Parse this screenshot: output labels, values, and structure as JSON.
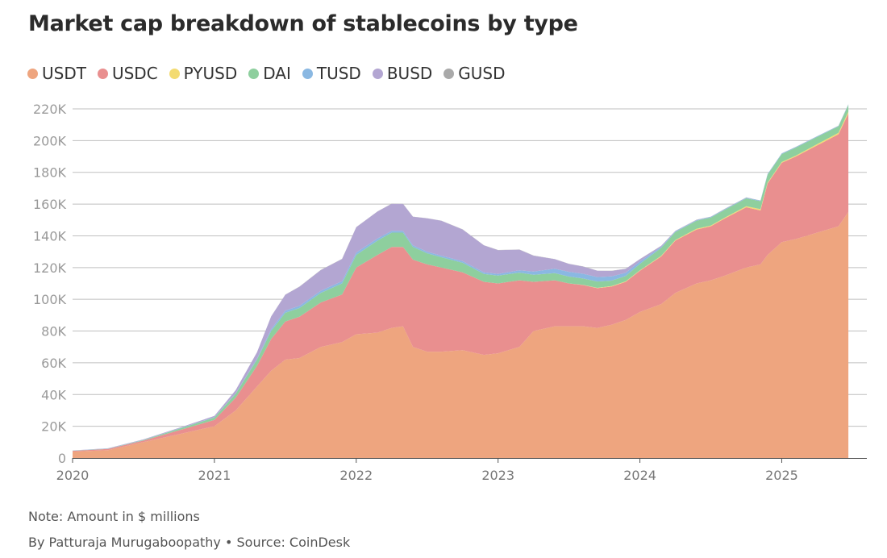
{
  "title": "Market cap breakdown of stablecoins by type",
  "legend": [
    {
      "label": "USDT",
      "color": "#eea57f"
    },
    {
      "label": "USDC",
      "color": "#e98f8f"
    },
    {
      "label": "PYUSD",
      "color": "#f3db72"
    },
    {
      "label": "DAI",
      "color": "#8ecf9e"
    },
    {
      "label": "TUSD",
      "color": "#8ab8e2"
    },
    {
      "label": "BUSD",
      "color": "#b3a6d2"
    },
    {
      "label": "GUSD",
      "color": "#a9a9a9"
    }
  ],
  "note": "Note: Amount in $ millions",
  "byline": "By Patturaja Murugaboopathy",
  "source": "• Source: CoinDesk",
  "chart_data": {
    "type": "area",
    "stacked": true,
    "title": "Market cap breakdown of stablecoins by type",
    "xlabel": "",
    "ylabel": "",
    "ylim": [
      0,
      220000
    ],
    "yticks": [
      0,
      20000,
      40000,
      60000,
      80000,
      100000,
      120000,
      140000,
      160000,
      180000,
      200000,
      220000
    ],
    "ytick_labels": [
      "0",
      "20K",
      "40K",
      "60K",
      "80K",
      "100K",
      "120K",
      "140K",
      "160K",
      "180K",
      "200K",
      "220K"
    ],
    "xlim": [
      2020,
      2025.6
    ],
    "xticks": [
      2020,
      2021,
      2022,
      2023,
      2024,
      2025
    ],
    "xtick_labels": [
      "2020",
      "2021",
      "2022",
      "2023",
      "2024",
      "2025"
    ],
    "grid": "horizontal",
    "legend_position": "top-left",
    "x": [
      2020.0,
      2020.25,
      2020.5,
      2020.75,
      2021.0,
      2021.15,
      2021.3,
      2021.4,
      2021.5,
      2021.6,
      2021.75,
      2021.9,
      2022.0,
      2022.15,
      2022.25,
      2022.33,
      2022.4,
      2022.5,
      2022.6,
      2022.75,
      2022.9,
      2023.0,
      2023.15,
      2023.25,
      2023.4,
      2023.5,
      2023.6,
      2023.7,
      2023.8,
      2023.9,
      2024.0,
      2024.15,
      2024.25,
      2024.4,
      2024.5,
      2024.6,
      2024.75,
      2024.85,
      2024.9,
      2025.0,
      2025.1,
      2025.25,
      2025.4,
      2025.47
    ],
    "series": [
      {
        "name": "USDT",
        "values": [
          4000,
          5000,
          10000,
          15000,
          20000,
          30000,
          45000,
          55000,
          62000,
          63000,
          70000,
          73000,
          78000,
          79000,
          82000,
          83000,
          70000,
          67000,
          67000,
          68000,
          65000,
          66000,
          70000,
          80000,
          83000,
          83000,
          83000,
          82000,
          84000,
          87000,
          92000,
          97000,
          104000,
          110000,
          112000,
          115000,
          120000,
          122000,
          128000,
          136000,
          138000,
          142000,
          146000,
          155000
        ]
      },
      {
        "name": "USDC",
        "values": [
          500,
          700,
          1000,
          2500,
          4000,
          8000,
          13000,
          20000,
          24000,
          26000,
          28000,
          30000,
          42000,
          49000,
          51000,
          50000,
          55000,
          55000,
          53000,
          49000,
          46000,
          44000,
          42000,
          31000,
          29000,
          27000,
          26000,
          25000,
          24000,
          24000,
          26000,
          30000,
          33000,
          34000,
          34000,
          36000,
          38000,
          34000,
          45000,
          50000,
          52000,
          55000,
          58000,
          62000
        ]
      },
      {
        "name": "PYUSD",
        "values": [
          0,
          0,
          0,
          0,
          0,
          0,
          0,
          0,
          0,
          0,
          0,
          0,
          0,
          0,
          0,
          0,
          0,
          0,
          0,
          0,
          0,
          0,
          0,
          0,
          0,
          0,
          100,
          200,
          300,
          300,
          300,
          400,
          400,
          500,
          500,
          500,
          600,
          800,
          500,
          500,
          600,
          800,
          900,
          1200
        ]
      },
      {
        "name": "DAI",
        "values": [
          100,
          150,
          300,
          900,
          1500,
          2500,
          4000,
          5000,
          5500,
          5500,
          6000,
          7000,
          8000,
          9000,
          9000,
          9000,
          8000,
          7000,
          6500,
          6000,
          5000,
          5000,
          4800,
          4500,
          4500,
          4300,
          4000,
          4000,
          3500,
          3400,
          4000,
          5000,
          5000,
          5000,
          5000,
          5000,
          5000,
          5000,
          5000,
          5000,
          5000,
          4500,
          4000,
          4200
        ]
      },
      {
        "name": "TUSD",
        "values": [
          100,
          100,
          150,
          200,
          200,
          300,
          600,
          1200,
          1400,
          1400,
          1400,
          1400,
          1400,
          1300,
          1200,
          1100,
          1000,
          1000,
          1000,
          1000,
          1000,
          1000,
          1500,
          2000,
          2800,
          3000,
          3000,
          2800,
          2600,
          2000,
          1500,
          600,
          400,
          400,
          400,
          400,
          400,
          400,
          400,
          400,
          400,
          400,
          400,
          400
        ]
      },
      {
        "name": "BUSD",
        "values": [
          100,
          200,
          300,
          400,
          800,
          2000,
          4000,
          8000,
          10000,
          12000,
          13000,
          14000,
          16000,
          17000,
          17000,
          17000,
          18000,
          21000,
          22000,
          20000,
          17000,
          15000,
          13000,
          10000,
          6000,
          5000,
          4500,
          4000,
          3500,
          2500,
          1500,
          700,
          300,
          200,
          100,
          100,
          100,
          0,
          0,
          0,
          0,
          0,
          0,
          0
        ]
      },
      {
        "name": "GUSD",
        "values": [
          0,
          0,
          0,
          0,
          0,
          0,
          0,
          50,
          50,
          100,
          100,
          100,
          100,
          100,
          100,
          100,
          100,
          100,
          100,
          100,
          100,
          100,
          100,
          100,
          100,
          100,
          100,
          100,
          100,
          100,
          100,
          100,
          100,
          100,
          100,
          100,
          100,
          100,
          100,
          100,
          100,
          100,
          100,
          100
        ]
      }
    ]
  }
}
